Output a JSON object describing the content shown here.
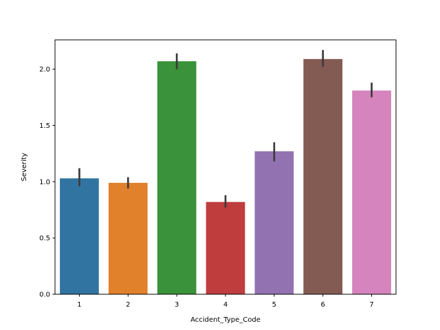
{
  "chart_data": {
    "type": "bar",
    "title": "",
    "xlabel": "Accident_Type_Code",
    "ylabel": "Severity",
    "categories": [
      "1",
      "2",
      "3",
      "4",
      "5",
      "6",
      "7"
    ],
    "values": [
      1.03,
      0.99,
      2.07,
      0.82,
      1.27,
      2.09,
      1.81
    ],
    "error_low": [
      0.96,
      0.94,
      2.0,
      0.77,
      1.18,
      2.02,
      1.75
    ],
    "error_high": [
      1.12,
      1.04,
      2.14,
      0.88,
      1.35,
      2.17,
      1.88
    ],
    "colors": [
      "#3274a1",
      "#e1812c",
      "#3a923a",
      "#c03d3e",
      "#9372b2",
      "#845b53",
      "#d684bd"
    ],
    "error_bar_color": "#3b3b3b",
    "ylim": [
      0,
      2.26
    ],
    "yticks": [
      0.0,
      0.5,
      1.0,
      1.5,
      2.0
    ],
    "ytick_labels": [
      "0.0",
      "0.5",
      "1.0",
      "1.5",
      "2.0"
    ],
    "grid": false,
    "legend": "none"
  }
}
